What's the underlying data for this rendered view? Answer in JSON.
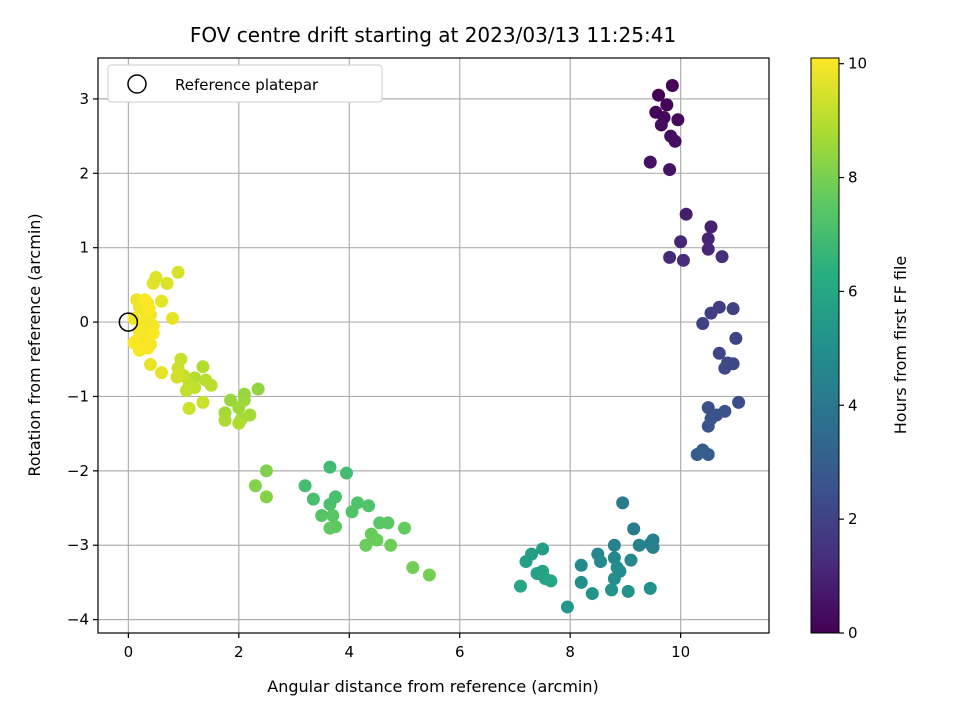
{
  "chart_data": {
    "type": "scatter",
    "title": "FOV centre drift starting at 2023/03/13 11:25:41",
    "xlabel": "Angular distance from reference (arcmin)",
    "ylabel": "Rotation from reference (arcmin)",
    "xlim": [
      -0.55,
      11.6
    ],
    "ylim": [
      -4.18,
      3.55
    ],
    "xticks": [
      0,
      2,
      4,
      6,
      8,
      10
    ],
    "yticks": [
      -4,
      -3,
      -2,
      -1,
      0,
      1,
      2,
      3
    ],
    "grid": true,
    "legend": {
      "position": "top-left",
      "entries": [
        "Reference platepar"
      ]
    },
    "reference_point": {
      "x": 0,
      "y": 0
    },
    "colorbar": {
      "label": "Hours from first FF file",
      "range": [
        0,
        10.1
      ],
      "ticks": [
        0,
        2,
        4,
        6,
        8,
        10
      ],
      "colormap": "viridis"
    },
    "points": [
      [
        9.6,
        3.05,
        0.0
      ],
      [
        9.85,
        3.18,
        0.05
      ],
      [
        9.75,
        2.92,
        0.1
      ],
      [
        9.55,
        2.82,
        0.15
      ],
      [
        9.7,
        2.75,
        0.2
      ],
      [
        9.95,
        2.72,
        0.25
      ],
      [
        9.65,
        2.65,
        0.3
      ],
      [
        9.82,
        2.5,
        0.35
      ],
      [
        9.9,
        2.43,
        0.4
      ],
      [
        9.45,
        2.15,
        0.45
      ],
      [
        9.8,
        2.05,
        0.5
      ],
      [
        10.1,
        1.45,
        0.8
      ],
      [
        10.55,
        1.28,
        0.9
      ],
      [
        10.5,
        1.12,
        1.0
      ],
      [
        10.0,
        1.08,
        1.05
      ],
      [
        10.5,
        0.98,
        1.1
      ],
      [
        9.8,
        0.87,
        1.2
      ],
      [
        10.05,
        0.83,
        1.25
      ],
      [
        10.75,
        0.88,
        1.3
      ],
      [
        10.7,
        0.2,
        1.8
      ],
      [
        10.55,
        0.12,
        1.85
      ],
      [
        10.95,
        0.18,
        1.9
      ],
      [
        10.4,
        -0.02,
        1.95
      ],
      [
        11.0,
        -0.22,
        2.0
      ],
      [
        10.7,
        -0.42,
        2.1
      ],
      [
        10.85,
        -0.55,
        2.15
      ],
      [
        10.95,
        -0.56,
        2.2
      ],
      [
        10.8,
        -0.62,
        2.25
      ],
      [
        11.05,
        -1.08,
        2.4
      ],
      [
        10.5,
        -1.15,
        2.45
      ],
      [
        10.8,
        -1.2,
        2.5
      ],
      [
        10.65,
        -1.25,
        2.55
      ],
      [
        10.55,
        -1.3,
        2.6
      ],
      [
        10.5,
        -1.4,
        2.65
      ],
      [
        10.4,
        -1.72,
        2.9
      ],
      [
        10.3,
        -1.78,
        2.95
      ],
      [
        10.5,
        -1.78,
        3.0
      ],
      [
        8.95,
        -2.43,
        4.1
      ],
      [
        9.15,
        -2.78,
        4.2
      ],
      [
        9.5,
        -2.93,
        4.3
      ],
      [
        9.45,
        -2.98,
        4.35
      ],
      [
        9.5,
        -3.03,
        4.4
      ],
      [
        9.25,
        -3.0,
        4.45
      ],
      [
        8.8,
        -3.0,
        4.5
      ],
      [
        8.5,
        -3.12,
        4.6
      ],
      [
        8.8,
        -3.17,
        4.65
      ],
      [
        9.1,
        -3.2,
        4.7
      ],
      [
        8.55,
        -3.22,
        4.75
      ],
      [
        8.2,
        -3.27,
        4.8
      ],
      [
        8.85,
        -3.3,
        4.85
      ],
      [
        8.9,
        -3.35,
        4.9
      ],
      [
        8.8,
        -3.45,
        4.95
      ],
      [
        8.2,
        -3.5,
        5.0
      ],
      [
        9.45,
        -3.58,
        5.05
      ],
      [
        8.75,
        -3.6,
        5.1
      ],
      [
        9.05,
        -3.62,
        5.15
      ],
      [
        8.4,
        -3.65,
        5.2
      ],
      [
        7.95,
        -3.83,
        5.3
      ],
      [
        7.5,
        -3.05,
        5.6
      ],
      [
        7.3,
        -3.12,
        5.65
      ],
      [
        7.2,
        -3.22,
        5.7
      ],
      [
        7.4,
        -3.38,
        5.75
      ],
      [
        7.5,
        -3.35,
        5.8
      ],
      [
        7.55,
        -3.45,
        5.85
      ],
      [
        7.65,
        -3.48,
        5.9
      ],
      [
        7.1,
        -3.55,
        5.95
      ],
      [
        3.65,
        -1.95,
        6.9
      ],
      [
        3.95,
        -2.03,
        6.95
      ],
      [
        3.2,
        -2.2,
        7.0
      ],
      [
        3.35,
        -2.38,
        7.05
      ],
      [
        3.75,
        -2.35,
        7.1
      ],
      [
        3.65,
        -2.45,
        7.15
      ],
      [
        4.15,
        -2.43,
        7.2
      ],
      [
        4.35,
        -2.47,
        7.25
      ],
      [
        4.05,
        -2.55,
        7.3
      ],
      [
        3.5,
        -2.6,
        7.35
      ],
      [
        3.7,
        -2.6,
        7.4
      ],
      [
        4.55,
        -2.7,
        7.45
      ],
      [
        4.7,
        -2.7,
        7.5
      ],
      [
        3.75,
        -2.75,
        7.55
      ],
      [
        3.65,
        -2.77,
        7.6
      ],
      [
        5.0,
        -2.77,
        7.65
      ],
      [
        4.4,
        -2.85,
        7.7
      ],
      [
        4.5,
        -2.93,
        7.75
      ],
      [
        4.3,
        -3.0,
        7.8
      ],
      [
        4.75,
        -3.0,
        7.85
      ],
      [
        5.15,
        -3.3,
        7.9
      ],
      [
        5.45,
        -3.4,
        7.95
      ],
      [
        2.5,
        -2.0,
        8.1
      ],
      [
        2.3,
        -2.2,
        8.15
      ],
      [
        2.5,
        -2.35,
        8.2
      ],
      [
        2.35,
        -0.9,
        8.4
      ],
      [
        2.1,
        -0.97,
        8.45
      ],
      [
        1.85,
        -1.05,
        8.5
      ],
      [
        2.1,
        -1.05,
        8.55
      ],
      [
        2.0,
        -1.15,
        8.6
      ],
      [
        1.75,
        -1.22,
        8.65
      ],
      [
        2.2,
        -1.25,
        8.7
      ],
      [
        2.05,
        -1.3,
        8.75
      ],
      [
        1.75,
        -1.32,
        8.8
      ],
      [
        2.0,
        -1.36,
        8.85
      ],
      [
        1.35,
        -0.6,
        8.9
      ],
      [
        1.2,
        -0.75,
        8.95
      ],
      [
        1.4,
        -0.78,
        9.0
      ],
      [
        1.5,
        -0.85,
        9.05
      ],
      [
        1.1,
        -0.83,
        9.1
      ],
      [
        1.2,
        -0.88,
        9.15
      ],
      [
        1.05,
        -0.92,
        9.2
      ],
      [
        1.0,
        -0.72,
        9.25
      ],
      [
        1.35,
        -1.08,
        9.3
      ],
      [
        1.1,
        -1.16,
        9.35
      ],
      [
        0.95,
        -0.5,
        9.3
      ],
      [
        0.9,
        -0.62,
        9.35
      ],
      [
        0.88,
        -0.74,
        9.4
      ],
      [
        0.9,
        0.67,
        9.5
      ],
      [
        0.7,
        0.52,
        9.55
      ],
      [
        0.5,
        0.6,
        9.6
      ],
      [
        0.45,
        0.52,
        9.65
      ],
      [
        0.6,
        0.28,
        9.7
      ],
      [
        0.8,
        0.05,
        9.75
      ],
      [
        0.6,
        -0.68,
        9.75
      ],
      [
        0.4,
        -0.57,
        9.8
      ],
      [
        0.15,
        0.3,
        9.85
      ],
      [
        0.25,
        0.28,
        9.85
      ],
      [
        0.35,
        0.25,
        9.9
      ],
      [
        0.2,
        0.2,
        9.9
      ],
      [
        0.3,
        0.15,
        9.92
      ],
      [
        0.4,
        0.1,
        9.92
      ],
      [
        0.1,
        0.05,
        9.94
      ],
      [
        0.25,
        0.0,
        9.94
      ],
      [
        0.35,
        0.02,
        9.96
      ],
      [
        0.45,
        -0.05,
        9.96
      ],
      [
        0.3,
        -0.1,
        9.98
      ],
      [
        0.2,
        -0.12,
        9.98
      ],
      [
        0.15,
        -0.25,
        10.0
      ],
      [
        0.3,
        -0.2,
        10.0
      ],
      [
        0.4,
        -0.3,
        10.02
      ],
      [
        0.25,
        -0.28,
        10.02
      ],
      [
        0.35,
        -0.35,
        10.04
      ],
      [
        0.2,
        -0.38,
        10.05
      ],
      [
        0.1,
        -0.28,
        10.06
      ],
      [
        0.3,
        0.3,
        10.06
      ],
      [
        0.45,
        -0.15,
        10.08
      ],
      [
        0.38,
        0.18,
        10.08
      ]
    ]
  }
}
